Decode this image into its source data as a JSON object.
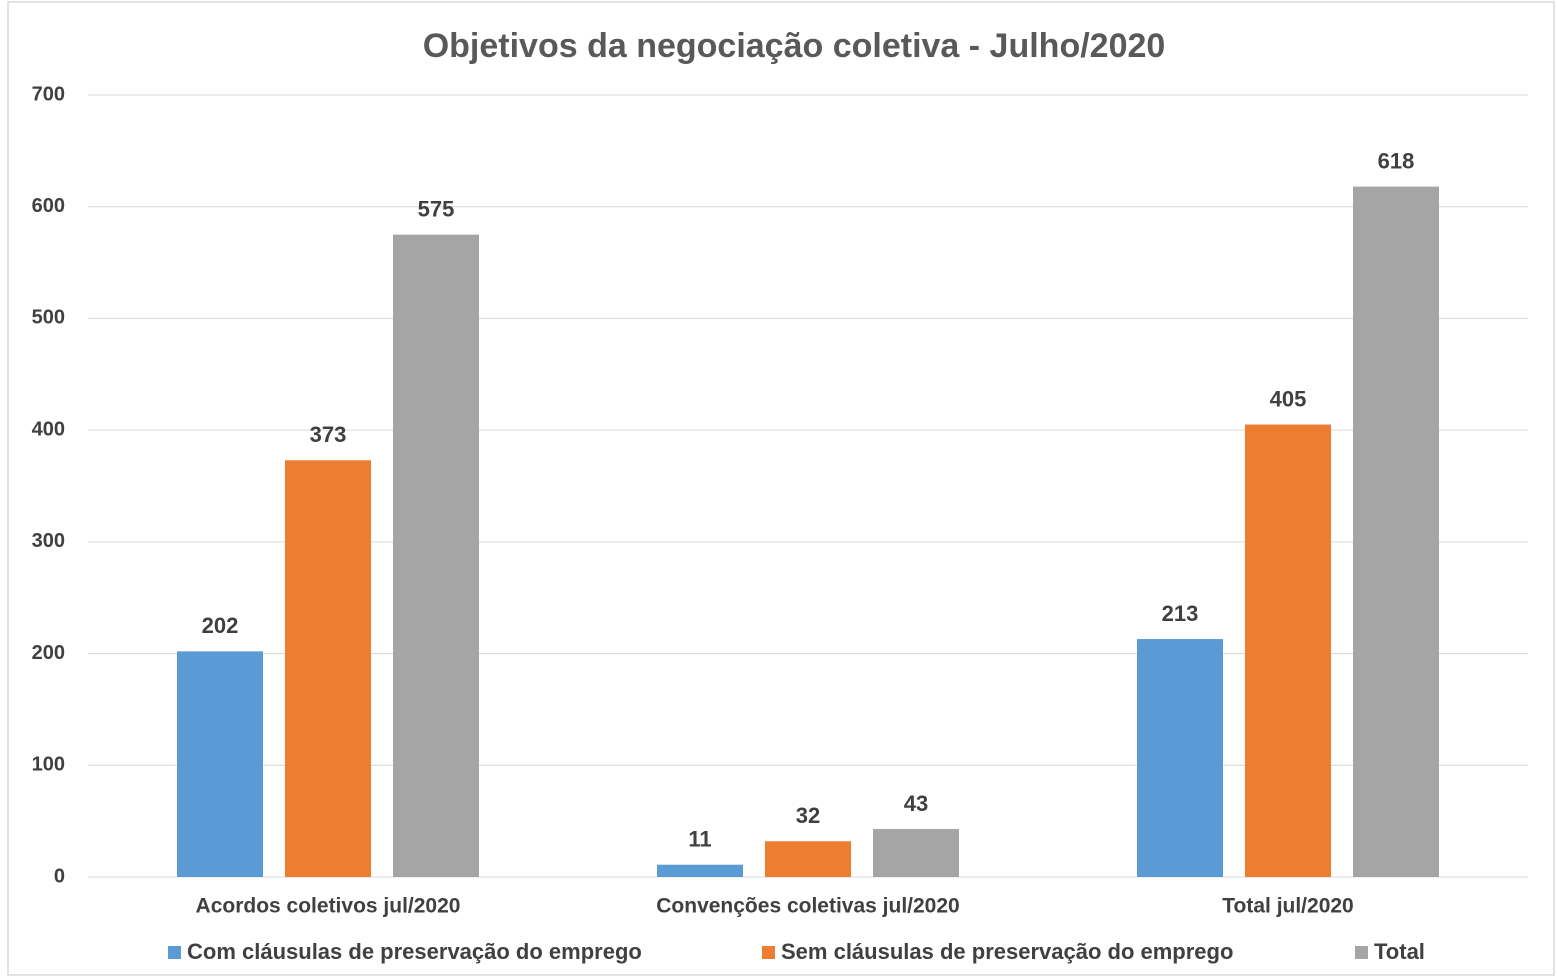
{
  "chart_data": {
    "type": "bar",
    "title": "Objetivos da negociação coletiva - Julho/2020",
    "categories": [
      "Acordos coletivos jul/2020",
      "Convenções coletivas jul/2020",
      "Total jul/2020"
    ],
    "series": [
      {
        "name": "Com cláusulas de preservação do emprego",
        "color": "#5b9bd5",
        "values": [
          202,
          11,
          213
        ]
      },
      {
        "name": "Sem cláusulas de preservação do emprego",
        "color": "#ed7d31",
        "values": [
          373,
          32,
          405
        ]
      },
      {
        "name": "Total",
        "color": "#a5a5a5",
        "values": [
          575,
          43,
          618
        ]
      }
    ],
    "ylim": [
      0,
      700
    ],
    "yticks": [
      0,
      100,
      200,
      300,
      400,
      500,
      600,
      700
    ],
    "grid": true,
    "legend": "bottom"
  }
}
